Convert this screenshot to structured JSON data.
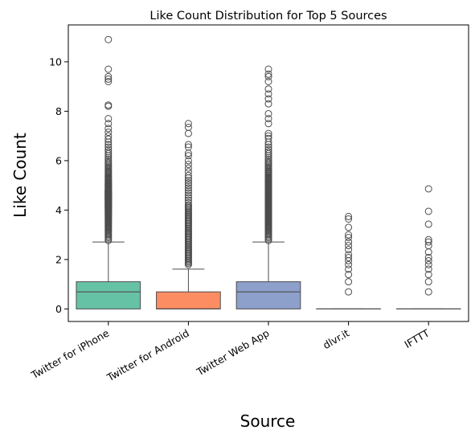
{
  "chart_data": {
    "type": "box",
    "title": "Like Count Distribution for Top 5 Sources",
    "xlabel": "Source",
    "ylabel": "Like Count",
    "ylim": [
      -0.5,
      11.5
    ],
    "yticks": [
      0,
      2,
      4,
      6,
      8,
      10
    ],
    "grid": false,
    "categories": [
      "Twitter for iPhone",
      "Twitter for Android",
      "Twitter Web App",
      "dlvr.it",
      "IFTTT"
    ],
    "colors": [
      "#66c2a5",
      "#fc8d62",
      "#8da0cb",
      "#e78ac3",
      "#a6d854"
    ],
    "boxes": [
      {
        "name": "Twitter for iPhone",
        "whisker_low": 0,
        "q1": 0,
        "median": 0.69,
        "q3": 1.1,
        "whisker_high": 2.71,
        "outliers": [
          2.77,
          2.83,
          2.89,
          2.94,
          3.0,
          3.04,
          3.09,
          3.14,
          3.18,
          3.22,
          3.26,
          3.3,
          3.33,
          3.37,
          3.4,
          3.43,
          3.47,
          3.5,
          3.53,
          3.56,
          3.58,
          3.61,
          3.64,
          3.66,
          3.69,
          3.71,
          3.74,
          3.76,
          3.78,
          3.81,
          3.83,
          3.85,
          3.87,
          3.89,
          3.91,
          3.93,
          3.95,
          3.97,
          3.99,
          4.0,
          4.02,
          4.04,
          4.06,
          4.08,
          4.09,
          4.11,
          4.13,
          4.14,
          4.16,
          4.17,
          4.19,
          4.2,
          4.22,
          4.23,
          4.25,
          4.26,
          4.28,
          4.29,
          4.3,
          4.32,
          4.33,
          4.34,
          4.36,
          4.37,
          4.38,
          4.39,
          4.41,
          4.42,
          4.43,
          4.44,
          4.45,
          4.47,
          4.48,
          4.49,
          4.5,
          4.51,
          4.52,
          4.53,
          4.54,
          4.55,
          4.56,
          4.58,
          4.59,
          4.6,
          4.61,
          4.62,
          4.63,
          4.64,
          4.65,
          4.66,
          4.67,
          4.68,
          4.69,
          4.7,
          4.71,
          4.72,
          4.73,
          4.74,
          4.75,
          4.76,
          4.77,
          4.78,
          4.8,
          4.82,
          4.84,
          4.86,
          4.88,
          4.9,
          4.92,
          4.94,
          4.96,
          4.98,
          5.0,
          5.02,
          5.04,
          5.06,
          5.08,
          5.1,
          5.12,
          5.15,
          5.18,
          5.21,
          5.24,
          5.27,
          5.3,
          5.33,
          5.36,
          5.4,
          5.44,
          5.48,
          5.52,
          5.56,
          5.6,
          5.65,
          5.7,
          5.75,
          5.8,
          5.86,
          5.92,
          5.98,
          6.05,
          6.12,
          6.2,
          6.28,
          6.36,
          6.45,
          6.55,
          6.65,
          6.75,
          6.87,
          7.0,
          7.15,
          7.3,
          7.5,
          7.7,
          8.2,
          8.25,
          9.2,
          9.3,
          9.4,
          9.7,
          10.9
        ]
      },
      {
        "name": "Twitter for Android",
        "whisker_low": 0,
        "q1": 0,
        "median": 0,
        "q3": 0.69,
        "whisker_high": 1.61,
        "outliers": [
          1.79,
          1.85,
          1.9,
          1.95,
          2.0,
          2.05,
          2.1,
          2.15,
          2.2,
          2.25,
          2.3,
          2.35,
          2.4,
          2.45,
          2.5,
          2.55,
          2.6,
          2.65,
          2.7,
          2.75,
          2.8,
          2.85,
          2.9,
          2.95,
          3.0,
          3.05,
          3.1,
          3.15,
          3.2,
          3.25,
          3.3,
          3.35,
          3.4,
          3.45,
          3.5,
          3.55,
          3.6,
          3.65,
          3.7,
          3.75,
          3.8,
          3.85,
          3.9,
          3.95,
          4.0,
          4.05,
          4.1,
          4.15,
          4.2,
          4.3,
          4.4,
          4.5,
          4.6,
          4.7,
          4.8,
          4.9,
          5.0,
          5.1,
          5.2,
          5.3,
          5.4,
          5.55,
          5.7,
          5.85,
          6.0,
          6.2,
          6.3,
          6.55,
          6.65,
          7.1,
          7.35,
          7.5
        ]
      },
      {
        "name": "Twitter Web App",
        "whisker_low": 0,
        "q1": 0,
        "median": 0.69,
        "q3": 1.1,
        "whisker_high": 2.71,
        "outliers": [
          2.77,
          2.83,
          2.89,
          2.94,
          3.0,
          3.04,
          3.09,
          3.14,
          3.18,
          3.22,
          3.26,
          3.3,
          3.33,
          3.37,
          3.4,
          3.43,
          3.47,
          3.5,
          3.53,
          3.56,
          3.58,
          3.61,
          3.64,
          3.66,
          3.69,
          3.71,
          3.74,
          3.76,
          3.78,
          3.81,
          3.83,
          3.85,
          3.87,
          3.89,
          3.91,
          3.93,
          3.95,
          3.97,
          3.99,
          4.0,
          4.02,
          4.04,
          4.06,
          4.08,
          4.09,
          4.11,
          4.13,
          4.14,
          4.16,
          4.17,
          4.19,
          4.2,
          4.22,
          4.23,
          4.25,
          4.26,
          4.28,
          4.29,
          4.3,
          4.32,
          4.33,
          4.34,
          4.36,
          4.37,
          4.38,
          4.39,
          4.41,
          4.42,
          4.43,
          4.44,
          4.45,
          4.47,
          4.48,
          4.49,
          4.5,
          4.51,
          4.52,
          4.53,
          4.54,
          4.55,
          4.56,
          4.58,
          4.59,
          4.6,
          4.61,
          4.62,
          4.63,
          4.64,
          4.65,
          4.66,
          4.67,
          4.68,
          4.69,
          4.7,
          4.71,
          4.72,
          4.73,
          4.74,
          4.75,
          4.76,
          4.77,
          4.78,
          4.8,
          4.82,
          4.84,
          4.86,
          4.88,
          4.9,
          4.92,
          4.94,
          4.96,
          4.98,
          5.0,
          5.02,
          5.04,
          5.06,
          5.08,
          5.1,
          5.12,
          5.15,
          5.18,
          5.21,
          5.24,
          5.27,
          5.3,
          5.33,
          5.36,
          5.4,
          5.44,
          5.48,
          5.52,
          5.56,
          5.6,
          5.65,
          5.7,
          5.75,
          5.8,
          5.86,
          5.92,
          5.98,
          6.05,
          6.12,
          6.2,
          6.28,
          6.36,
          6.45,
          6.55,
          6.65,
          6.75,
          6.9,
          7.0,
          7.1,
          7.5,
          7.7,
          7.9,
          8.3,
          8.5,
          8.7,
          8.9,
          9.2,
          9.4,
          9.5,
          9.7
        ]
      },
      {
        "name": "dlvr.it",
        "whisker_low": 0,
        "q1": 0,
        "median": 0,
        "q3": 0,
        "whisker_high": 0,
        "outliers": [
          0.69,
          1.1,
          1.39,
          1.61,
          1.79,
          1.95,
          2.08,
          2.2,
          2.4,
          2.56,
          2.71,
          2.89,
          3.0,
          3.3,
          3.64,
          3.74
        ]
      },
      {
        "name": "IFTTT",
        "whisker_low": 0,
        "q1": 0,
        "median": 0,
        "q3": 0,
        "whisker_high": 0,
        "outliers": [
          0.69,
          1.1,
          1.39,
          1.61,
          1.79,
          1.95,
          2.08,
          2.3,
          2.56,
          2.71,
          2.8,
          3.43,
          3.95,
          4.86
        ]
      }
    ]
  }
}
